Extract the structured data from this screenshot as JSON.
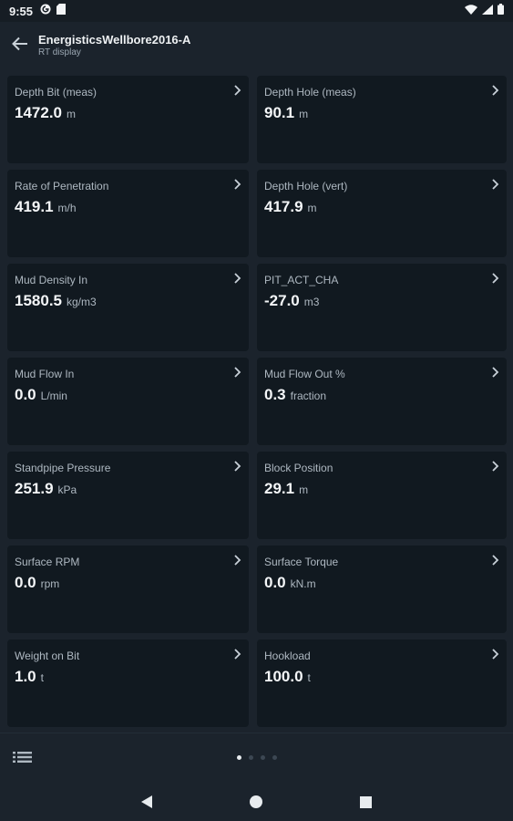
{
  "status": {
    "time": "9:55",
    "icons": [
      "google-play-protect-icon",
      "sd-card-icon",
      "wifi-icon",
      "signal-icon",
      "battery-icon"
    ]
  },
  "header": {
    "title": "EnergisticsWellbore2016-A",
    "subtitle": "RT display",
    "back_icon": "arrow-left-icon"
  },
  "cards": [
    {
      "label": "Depth Bit (meas)",
      "value": "1472.0",
      "unit": "m"
    },
    {
      "label": "Depth Hole (meas)",
      "value": "90.1",
      "unit": "m"
    },
    {
      "label": "Rate of Penetration",
      "value": "419.1",
      "unit": "m/h"
    },
    {
      "label": "Depth Hole (vert)",
      "value": "417.9",
      "unit": "m"
    },
    {
      "label": "Mud Density In",
      "value": "1580.5",
      "unit": "kg/m3"
    },
    {
      "label": "PIT_ACT_CHA",
      "value": "-27.0",
      "unit": "m3"
    },
    {
      "label": "Mud Flow In",
      "value": "0.0",
      "unit": "L/min"
    },
    {
      "label": "Mud Flow Out %",
      "value": "0.3",
      "unit": "fraction"
    },
    {
      "label": "Standpipe Pressure",
      "value": "251.9",
      "unit": "kPa"
    },
    {
      "label": "Block Position",
      "value": "29.1",
      "unit": "m"
    },
    {
      "label": "Surface RPM",
      "value": "0.0",
      "unit": "rpm"
    },
    {
      "label": "Surface Torque",
      "value": "0.0",
      "unit": "kN.m"
    },
    {
      "label": "Weight on Bit",
      "value": "1.0",
      "unit": "t"
    },
    {
      "label": "Hookload",
      "value": "100.0",
      "unit": "t"
    }
  ],
  "pager": {
    "total_pages": 4,
    "active_page": 1
  },
  "colors": {
    "background": "#1b232c",
    "card": "#111920",
    "text_primary": "#f4f6f8",
    "text_secondary": "#aeb8c1"
  }
}
